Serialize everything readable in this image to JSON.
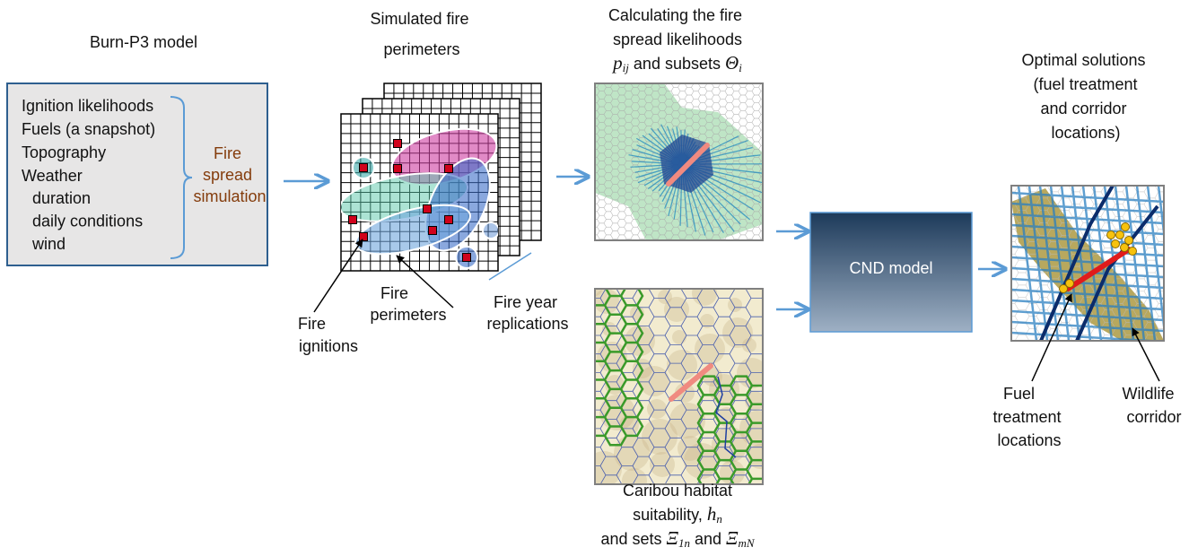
{
  "burn_p3": {
    "title": "Burn-P3 model",
    "inputs": [
      "Ignition likelihoods",
      "Fuels (a snapshot)",
      "Topography",
      "Weather"
    ],
    "weather_items": [
      "duration",
      "daily conditions",
      "wind"
    ],
    "process": [
      "Fire",
      "spread",
      "simulation"
    ]
  },
  "simulation": {
    "title": [
      "Simulated fire",
      "perimeters"
    ],
    "ignitions": [
      "Fire",
      "ignitions"
    ],
    "perimeters": [
      "Fire",
      "perimeters"
    ],
    "replications": [
      "Fire year",
      "replications"
    ]
  },
  "spread": {
    "title": [
      "Calculating the fire",
      "spread likelihoods"
    ],
    "p": "p",
    "p_sub": "ij",
    "subsets": "and subsets",
    "theta": "Θ",
    "theta_sub": "i"
  },
  "habitat": {
    "title": [
      "Caribou habitat",
      "suitability,"
    ],
    "h": "h",
    "h_sub": "n",
    "sets": "and sets",
    "xi": "Ξ",
    "xi_sub_1": "1n",
    "and": "and",
    "xi_sub_2": "mN"
  },
  "cnd": {
    "label": "CND model"
  },
  "solutions": {
    "title": [
      "Optimal solutions",
      "(fuel treatment",
      "and corridor",
      "locations)"
    ],
    "fuel": [
      "Fuel",
      "treatment",
      "locations"
    ],
    "corridor": [
      "Wildlife",
      "corridor"
    ]
  }
}
